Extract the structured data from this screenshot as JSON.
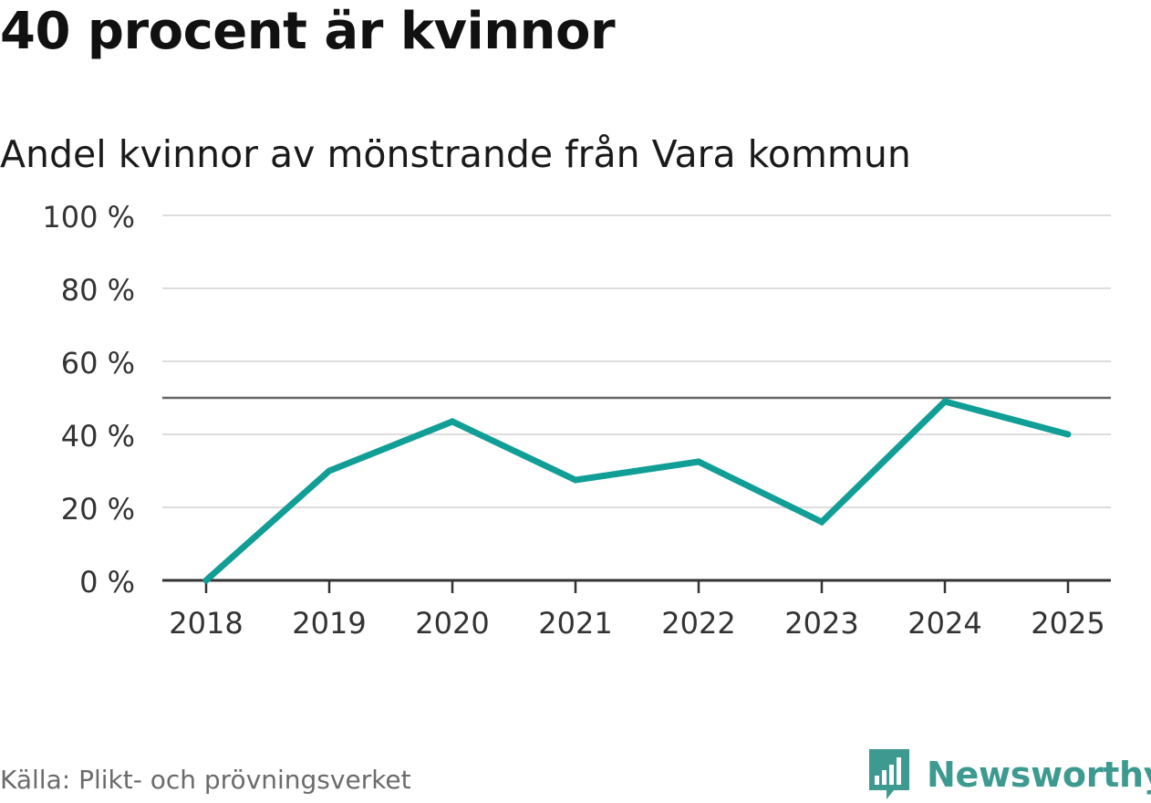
{
  "title": "40 procent är kvinnor",
  "source": "Källa: Plikt- och prövningsverket",
  "brand": {
    "name": "Newsworthy",
    "color": "#3d9a90",
    "icon": "bar-chart-speech-bubble-icon"
  },
  "colors": {
    "line": "#119e96",
    "grid": "#dddddd",
    "reference": "#666666",
    "axis": "#333333",
    "tick_text": "#333333"
  },
  "chart_data": {
    "type": "line",
    "title": "Andel kvinnor av mönstrande från Vara kommun",
    "x": [
      "2018",
      "2019",
      "2020",
      "2021",
      "2022",
      "2023",
      "2024",
      "2025"
    ],
    "series": [
      {
        "name": "Andel kvinnor",
        "values": [
          0,
          30,
          43.5,
          27.5,
          32.5,
          16,
          49,
          40
        ]
      }
    ],
    "ylim": [
      0,
      100
    ],
    "yticks": [
      0,
      20,
      40,
      60,
      80,
      100
    ],
    "ytick_labels": [
      "0 %",
      "20 %",
      "40 %",
      "60 %",
      "80 %",
      "100 %"
    ],
    "reference_line": 50,
    "grid": true,
    "xlabel": "",
    "ylabel": ""
  }
}
